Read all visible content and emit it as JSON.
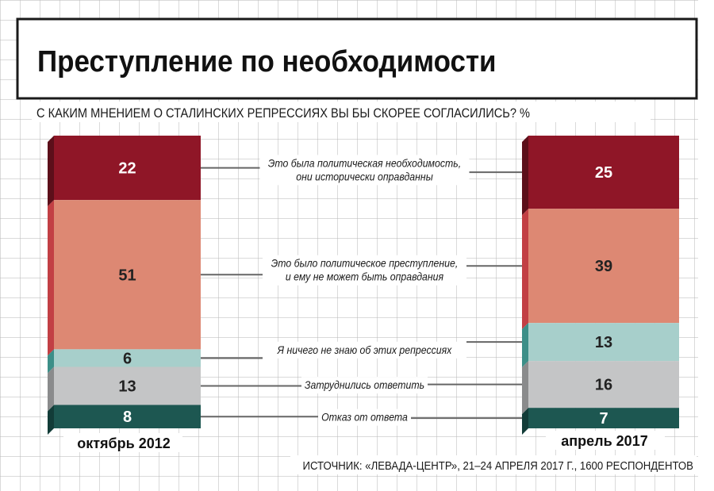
{
  "chart_data": {
    "type": "bar",
    "title": "Преступление по необходимости",
    "subtitle": "С КАКИМ МНЕНИЕМ О СТАЛИНСКИХ РЕПРЕССИЯХ ВЫ БЫ СКОРЕЕ СОГЛАСИЛИСЬ? %",
    "source": "ИСТОЧНИК: «ЛЕВАДА-ЦЕНТР», 21–24 АПРЕЛЯ 2017 Г., 1600 РЕСПОНДЕНТОВ",
    "stacked": true,
    "unit": "%",
    "categories": [
      "октябрь 2012",
      "апрель 2017"
    ],
    "series": [
      {
        "name": "Это была политическая необходимость, они исторически оправданны",
        "label_lines": [
          "Это была политическая необходимость,",
          "они исторически оправданны"
        ],
        "values": [
          22,
          25
        ]
      },
      {
        "name": "Это было политическое преступление, и ему не может быть оправдания",
        "label_lines": [
          "Это было политическое преступление,",
          "и ему не может быть оправдания"
        ],
        "values": [
          51,
          39
        ]
      },
      {
        "name": "Я ничего не знаю об этих репрессиях",
        "label_lines": [
          "Я ничего не знаю об этих репрессиях"
        ],
        "values": [
          6,
          13
        ]
      },
      {
        "name": "Затруднились ответить",
        "label_lines": [
          "Затруднились ответить"
        ],
        "values": [
          13,
          16
        ]
      },
      {
        "name": "Отказ от ответа",
        "label_lines": [
          "Отказ от ответа"
        ],
        "values": [
          8,
          7
        ]
      }
    ],
    "colors": {
      "front": [
        "#8f1627",
        "#dd8873",
        "#a7cfcb",
        "#c4c5c6",
        "#1d5751"
      ],
      "side": [
        "#5c0f1a",
        "#c23f44",
        "#3c8f88",
        "#8a8b8c",
        "#123c38"
      ],
      "value_text": [
        "#ffffff",
        "#222222",
        "#222222",
        "#222222",
        "#ffffff"
      ]
    }
  }
}
